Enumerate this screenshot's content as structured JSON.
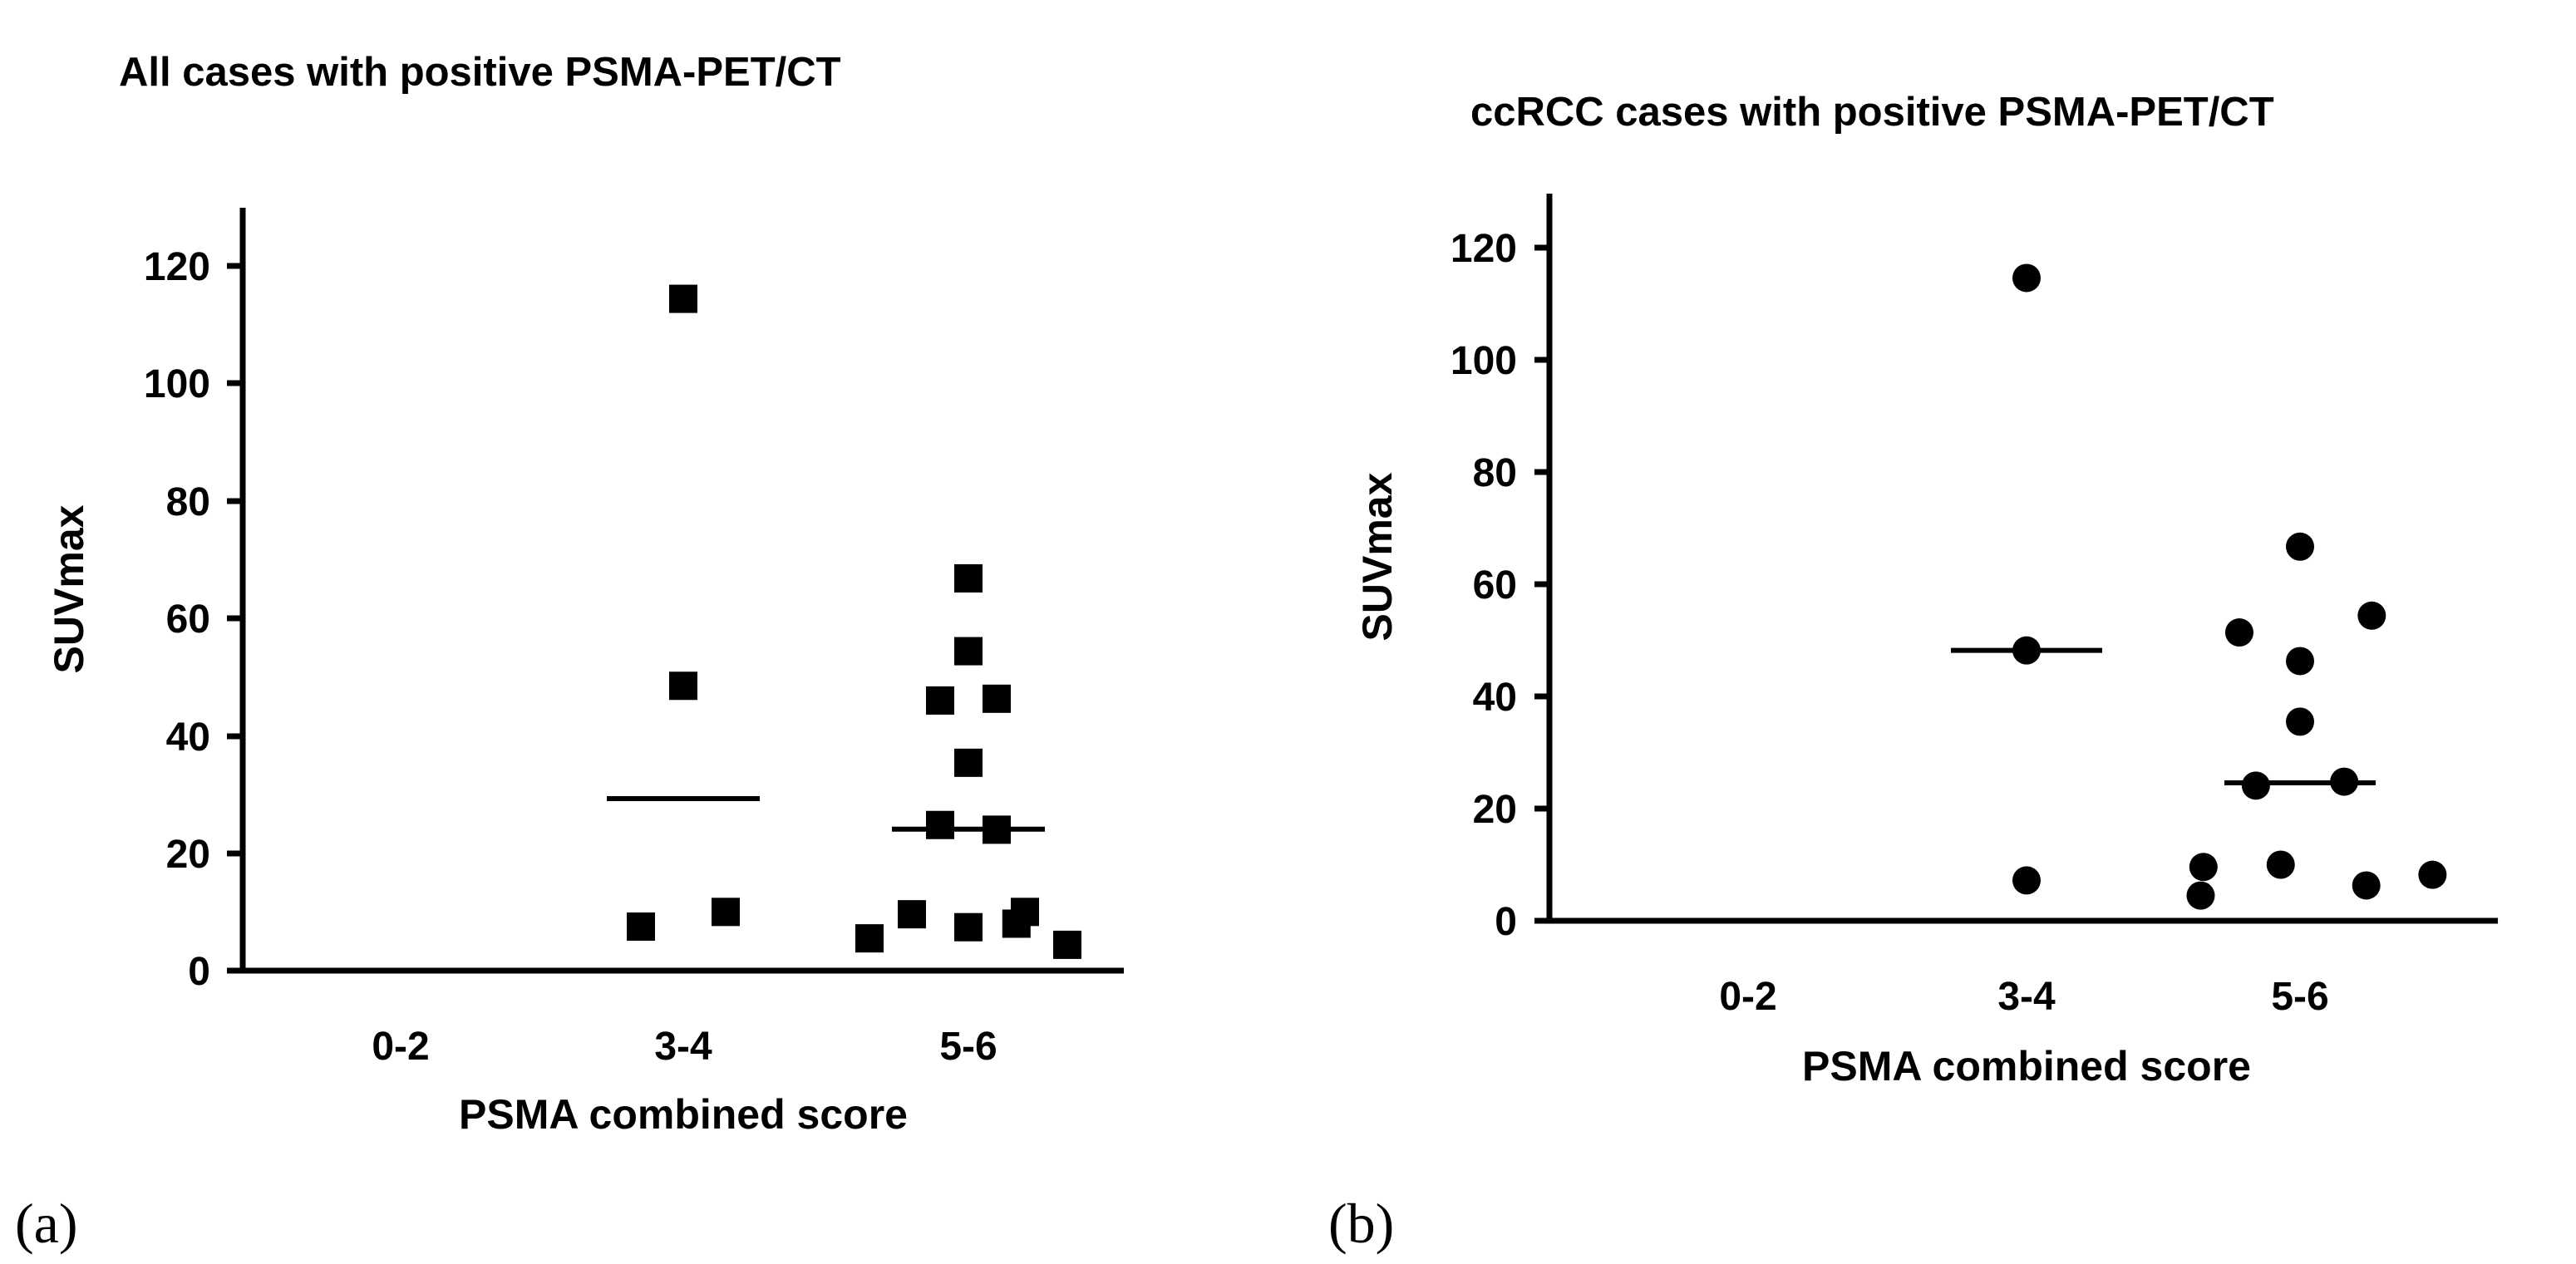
{
  "figure": {
    "panels": [
      {
        "label": "(a)"
      },
      {
        "label": "(b)"
      }
    ]
  },
  "chart_data": [
    {
      "type": "scatter",
      "marker": "square",
      "title": "All cases with positive PSMA-PET/CT",
      "xlabel": "PSMA combined score",
      "ylabel": "SUVmax",
      "categories": [
        "0-2",
        "3-4",
        "5-6"
      ],
      "ylim": [
        0,
        130
      ],
      "yticks": [
        0,
        20,
        40,
        60,
        80,
        100,
        120
      ],
      "points": [
        {
          "category": "3-4",
          "offset": 0.0,
          "y": 114.4
        },
        {
          "category": "3-4",
          "offset": 0.0,
          "y": 48.5
        },
        {
          "category": "3-4",
          "offset": -0.15,
          "y": 7.5
        },
        {
          "category": "3-4",
          "offset": 0.15,
          "y": 10.0
        },
        {
          "category": "5-6",
          "offset": 0.0,
          "y": 66.8
        },
        {
          "category": "5-6",
          "offset": 0.0,
          "y": 54.4
        },
        {
          "category": "5-6",
          "offset": -0.1,
          "y": 46.0
        },
        {
          "category": "5-6",
          "offset": 0.1,
          "y": 46.3
        },
        {
          "category": "5-6",
          "offset": 0.0,
          "y": 35.4
        },
        {
          "category": "5-6",
          "offset": -0.1,
          "y": 24.8
        },
        {
          "category": "5-6",
          "offset": 0.1,
          "y": 24.0
        },
        {
          "category": "5-6",
          "offset": -0.2,
          "y": 9.6
        },
        {
          "category": "5-6",
          "offset": 0.2,
          "y": 10.0
        },
        {
          "category": "5-6",
          "offset": -0.35,
          "y": 5.5
        },
        {
          "category": "5-6",
          "offset": 0.0,
          "y": 7.4
        },
        {
          "category": "5-6",
          "offset": 0.17,
          "y": 8.0
        },
        {
          "category": "5-6",
          "offset": 0.35,
          "y": 4.4
        }
      ],
      "medians": [
        {
          "category": "3-4",
          "y": 29.3
        },
        {
          "category": "5-6",
          "y": 24.1
        }
      ]
    },
    {
      "type": "scatter",
      "marker": "circle",
      "title": "ccRCC cases with positive PSMA-PET/CT",
      "xlabel": "PSMA combined score",
      "ylabel": "SUVmax",
      "categories": [
        "0-2",
        "3-4",
        "5-6"
      ],
      "ylim": [
        0,
        130
      ],
      "yticks": [
        0,
        20,
        40,
        60,
        80,
        100,
        120
      ],
      "points": [
        {
          "category": "3-4",
          "offset": 0.0,
          "y": 114.6
        },
        {
          "category": "3-4",
          "offset": 0.0,
          "y": 48.2
        },
        {
          "category": "3-4",
          "offset": 0.0,
          "y": 7.2
        },
        {
          "category": "5-6",
          "offset": 0.0,
          "y": 66.7
        },
        {
          "category": "5-6",
          "offset": 0.26,
          "y": 54.4
        },
        {
          "category": "5-6",
          "offset": -0.22,
          "y": 51.4
        },
        {
          "category": "5-6",
          "offset": 0.0,
          "y": 46.3
        },
        {
          "category": "5-6",
          "offset": 0.0,
          "y": 35.5
        },
        {
          "category": "5-6",
          "offset": -0.16,
          "y": 24.1
        },
        {
          "category": "5-6",
          "offset": 0.16,
          "y": 24.8
        },
        {
          "category": "5-6",
          "offset": -0.35,
          "y": 9.6
        },
        {
          "category": "5-6",
          "offset": -0.07,
          "y": 10.0
        },
        {
          "category": "5-6",
          "offset": -0.36,
          "y": 4.5
        },
        {
          "category": "5-6",
          "offset": 0.24,
          "y": 6.3
        },
        {
          "category": "5-6",
          "offset": 0.48,
          "y": 8.2
        }
      ],
      "medians": [
        {
          "category": "3-4",
          "y": 48.2
        },
        {
          "category": "5-6",
          "y": 24.6
        }
      ]
    }
  ]
}
